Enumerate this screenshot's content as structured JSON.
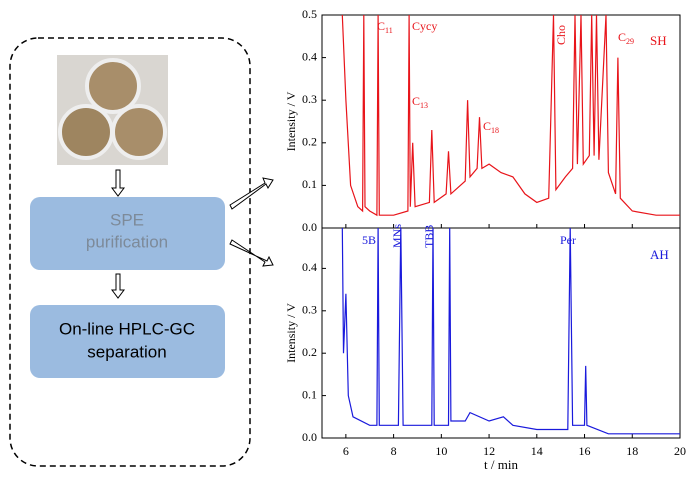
{
  "diagram": {
    "steps": [
      {
        "lines": [
          "SPE",
          "purification"
        ]
      },
      {
        "lines": [
          "On-line HPLC-GC",
          "separation"
        ]
      }
    ]
  },
  "chart_data": [
    {
      "type": "line",
      "y_label": "Intensity / V",
      "legend_label": "SH",
      "xlim": [
        5,
        20
      ],
      "xticks": [
        6,
        8,
        10,
        12,
        14,
        16,
        18,
        20
      ],
      "ylim": [
        0,
        0.5
      ],
      "yticks": [
        {
          "value": 0,
          "label": "0.0"
        },
        0.1,
        0.2,
        0.3,
        0.4,
        0.5
      ],
      "annotations": [
        {
          "text": "C",
          "sub": "11"
        },
        {
          "text": "Cycy"
        },
        {
          "text": "C",
          "sub": "13"
        },
        {
          "text": "C",
          "sub": "18"
        },
        {
          "text": "Cho"
        },
        {
          "text": "C",
          "sub": "29"
        }
      ],
      "series": [
        {
          "name": "SH",
          "color": "#e8141a",
          "x": [
            5.85,
            6.0,
            6.2,
            6.5,
            6.7,
            6.75,
            6.8,
            7.0,
            7.3,
            7.35,
            7.4,
            8.0,
            8.6,
            8.65,
            8.7,
            8.8,
            8.9,
            9.5,
            9.6,
            9.7,
            10.2,
            10.3,
            10.4,
            11.0,
            11.1,
            11.2,
            11.5,
            11.6,
            11.7,
            12.0,
            12.5,
            13.0,
            13.5,
            14.0,
            14.5,
            14.7,
            14.8,
            15.2,
            15.5,
            15.6,
            15.7,
            15.85,
            15.95,
            16.2,
            16.3,
            16.4,
            16.5,
            16.6,
            16.9,
            17.0,
            17.3,
            17.4,
            17.5,
            18.0,
            19.0,
            20.0
          ],
          "values": [
            0.5,
            0.3,
            0.1,
            0.05,
            0.04,
            0.5,
            0.05,
            0.04,
            0.03,
            0.5,
            0.03,
            0.03,
            0.04,
            0.5,
            0.05,
            0.2,
            0.05,
            0.06,
            0.23,
            0.06,
            0.08,
            0.18,
            0.08,
            0.11,
            0.3,
            0.12,
            0.14,
            0.26,
            0.14,
            0.15,
            0.13,
            0.12,
            0.08,
            0.06,
            0.07,
            0.5,
            0.09,
            0.12,
            0.14,
            0.5,
            0.15,
            0.5,
            0.15,
            0.17,
            0.5,
            0.17,
            0.5,
            0.16,
            0.5,
            0.13,
            0.08,
            0.4,
            0.07,
            0.04,
            0.03,
            0.03
          ]
        }
      ]
    },
    {
      "type": "line",
      "y_label": "Intensity / V",
      "x_label": "t / min",
      "legend_label": "AH",
      "xlim": [
        5,
        20
      ],
      "xticks": [
        6,
        8,
        10,
        12,
        14,
        16,
        18,
        20
      ],
      "ylim": [
        0,
        0.5
      ],
      "yticks": [
        {
          "value": 0,
          "label": "0.0"
        },
        0.1,
        0.2,
        0.3,
        0.4
      ],
      "annotations": [
        {
          "text": "5B"
        },
        {
          "text": "MNs"
        },
        {
          "text": "TBB"
        },
        {
          "text": "Per"
        }
      ],
      "series": [
        {
          "name": "AH",
          "color": "#1a1adc",
          "x": [
            5.75,
            5.85,
            5.9,
            6.0,
            6.1,
            6.3,
            7.0,
            7.3,
            7.35,
            7.4,
            8.2,
            8.3,
            8.4,
            9.6,
            9.65,
            9.7,
            10.3,
            10.35,
            10.4,
            11.0,
            11.2,
            12.0,
            12.6,
            13.0,
            14.0,
            15.3,
            15.4,
            15.5,
            16.0,
            16.05,
            16.1,
            17.0,
            20.0
          ],
          "values": [
            0.5,
            0.5,
            0.2,
            0.34,
            0.1,
            0.05,
            0.03,
            0.03,
            0.5,
            0.03,
            0.03,
            0.5,
            0.03,
            0.03,
            0.5,
            0.03,
            0.03,
            0.5,
            0.04,
            0.04,
            0.06,
            0.04,
            0.05,
            0.03,
            0.02,
            0.02,
            0.5,
            0.03,
            0.03,
            0.17,
            0.03,
            0.01,
            0.01
          ]
        }
      ]
    }
  ]
}
